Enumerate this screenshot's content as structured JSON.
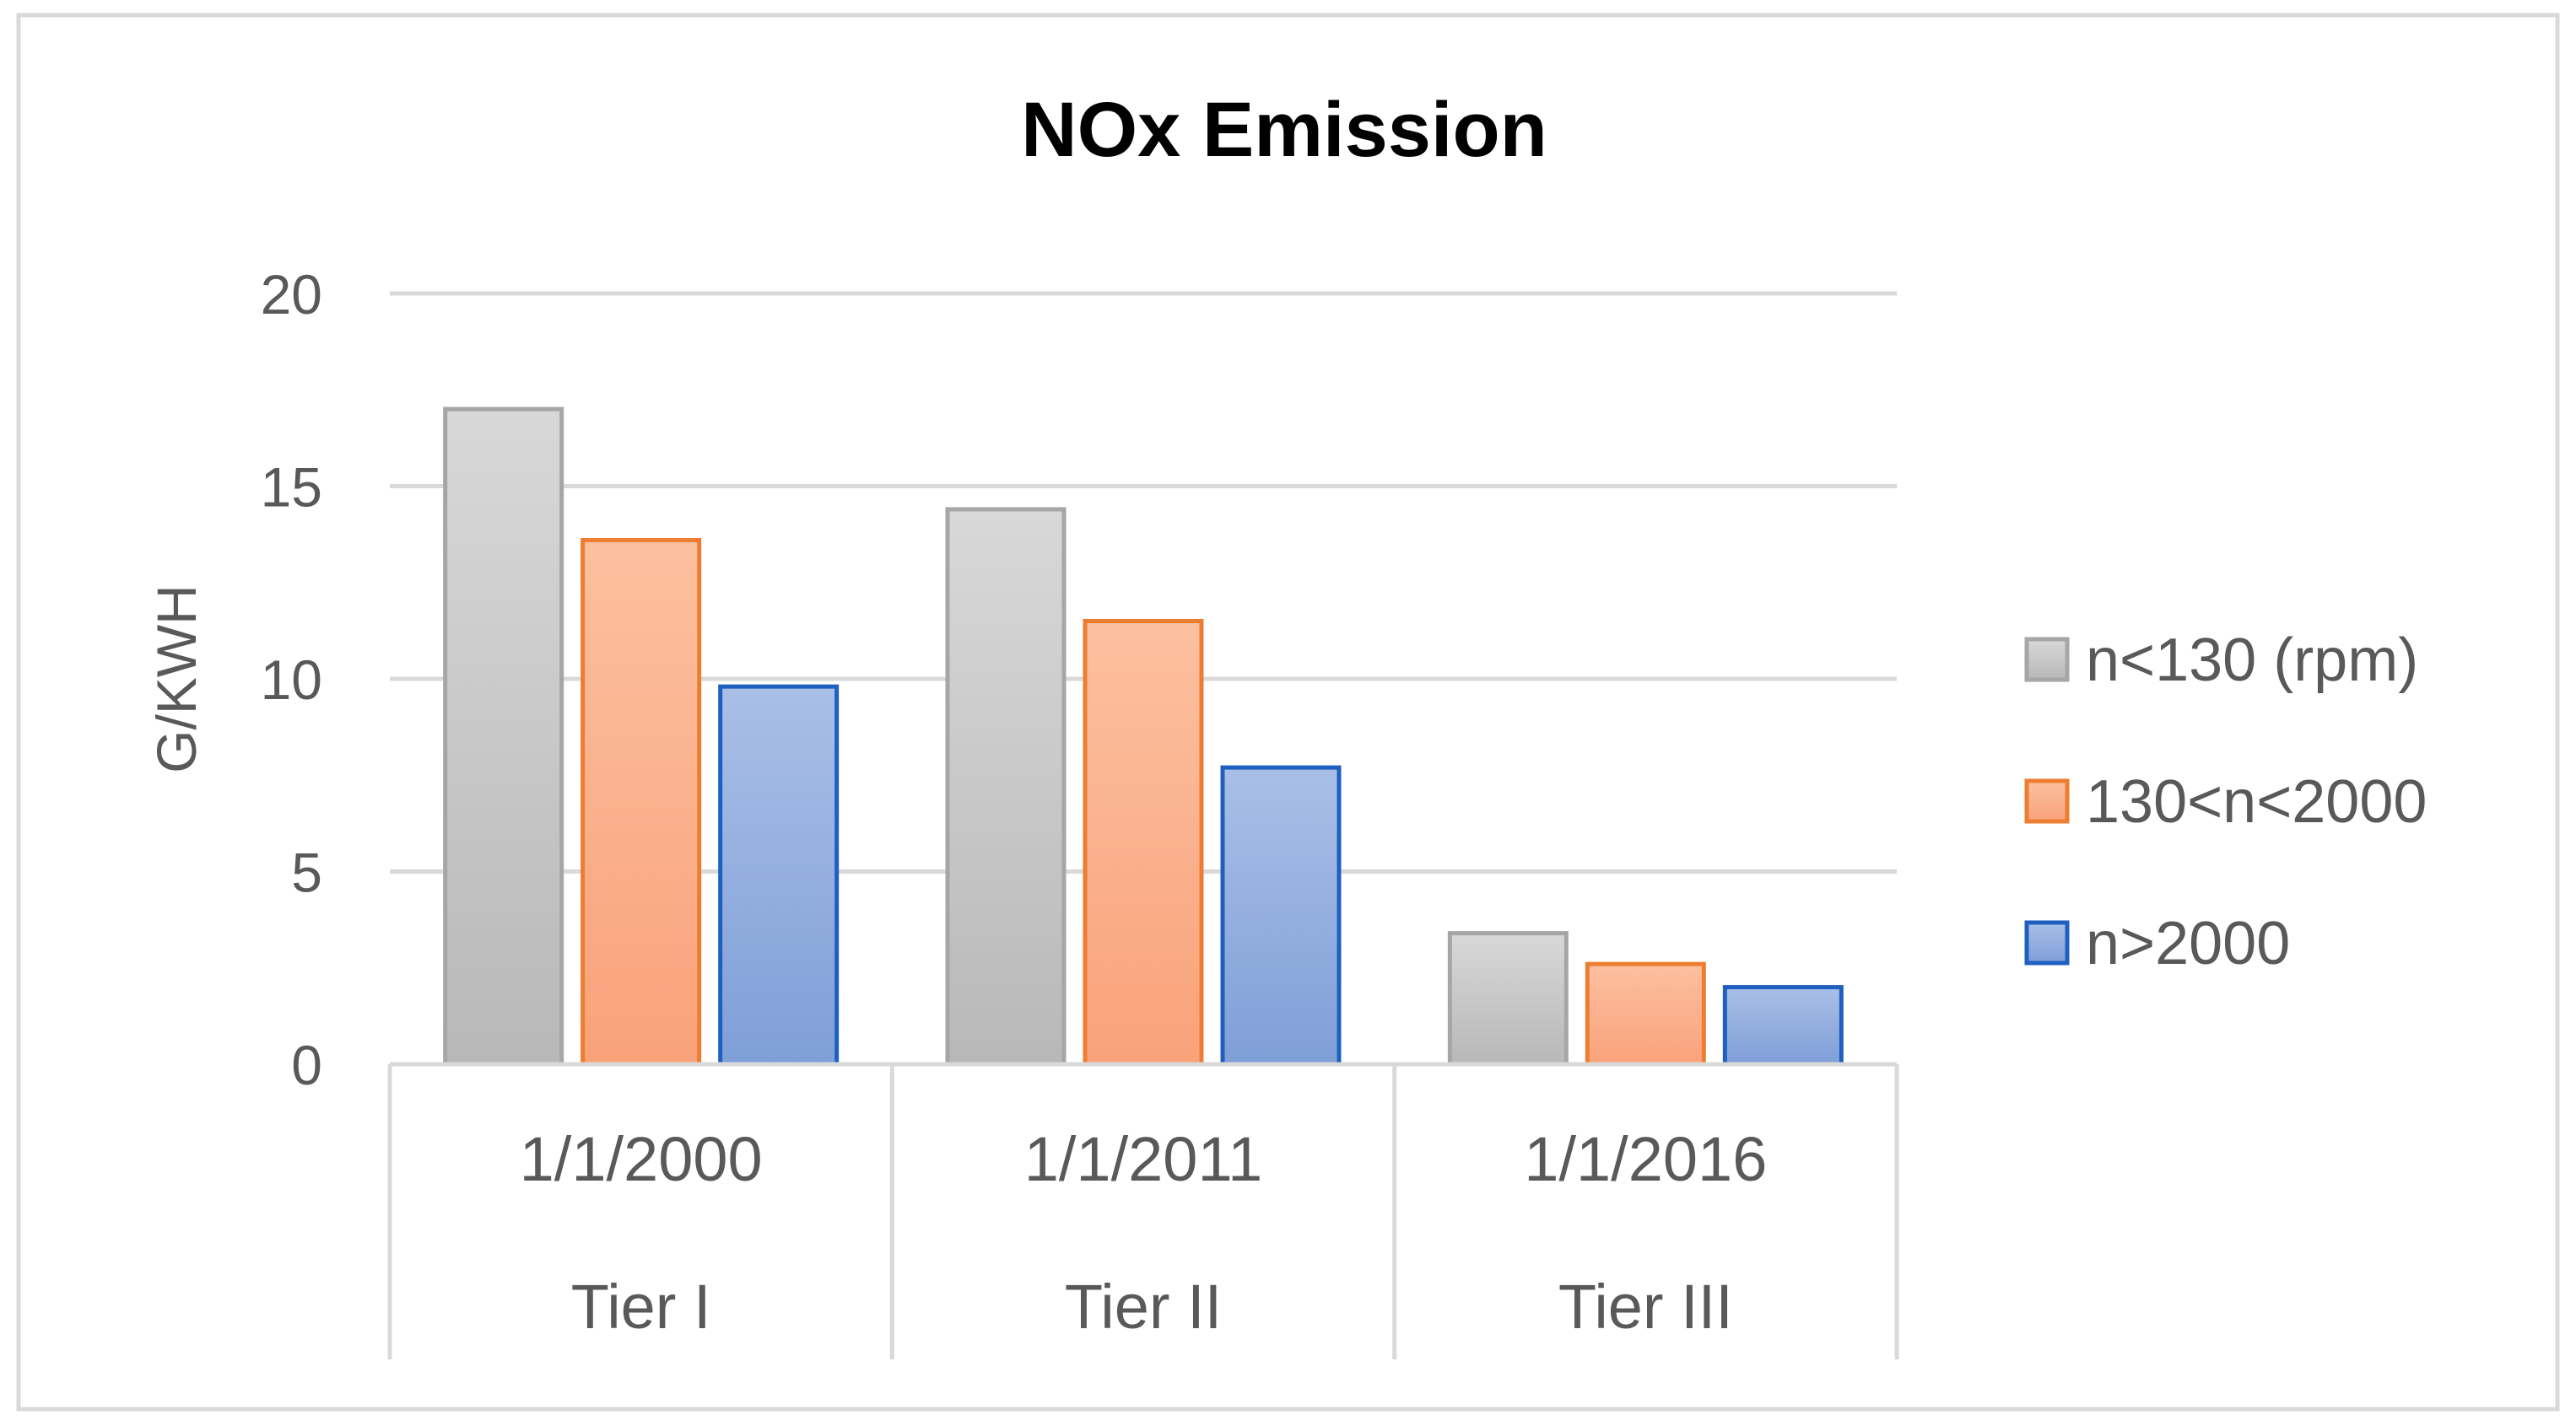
{
  "chart_data": {
    "type": "bar",
    "title": "NOx Emission",
    "ylabel": "G/KWH",
    "xlabel": "",
    "ylim": [
      0,
      20
    ],
    "yticks": [
      0,
      5,
      10,
      15,
      20
    ],
    "grid": true,
    "legend_position": "right",
    "categories": [
      {
        "date": "1/1/2000",
        "tier": "Tier I"
      },
      {
        "date": "1/1/2011",
        "tier": "Tier II"
      },
      {
        "date": "1/1/2016",
        "tier": "Tier III"
      }
    ],
    "series": [
      {
        "name": "n<130 (rpm)",
        "values": [
          17,
          14.4,
          3.4
        ],
        "fill_top": "#d8d8d8",
        "fill_bottom": "#b8b8b8",
        "stroke": "#a6a6a6"
      },
      {
        "name": "130<n<2000",
        "values": [
          13.6,
          11.5,
          2.6
        ],
        "fill_top": "#fcc0a0",
        "fill_bottom": "#f9a27a",
        "stroke": "#ed7d31"
      },
      {
        "name": "n>2000",
        "values": [
          9.8,
          7.7,
          2.0
        ],
        "fill_top": "#a9bfe6",
        "fill_bottom": "#7f9fd8",
        "stroke": "#1f5fbf"
      }
    ]
  }
}
